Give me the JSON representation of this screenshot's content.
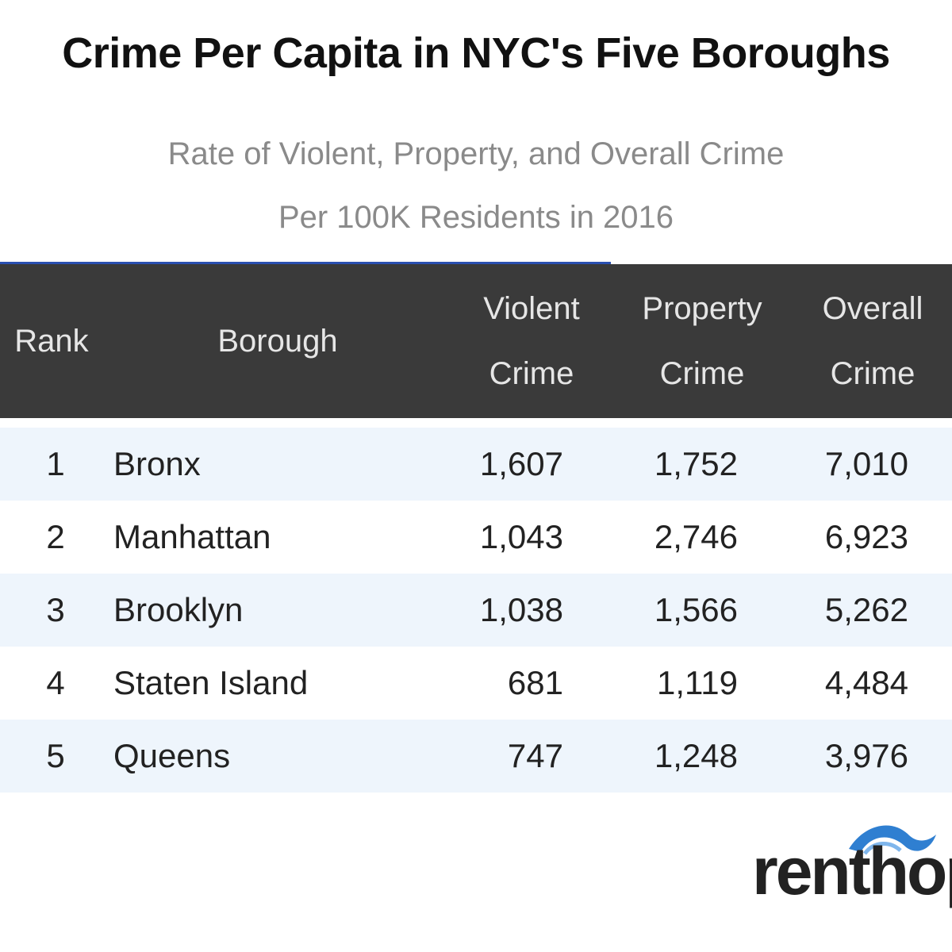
{
  "chart_data": {
    "type": "table",
    "title": "Crime Per Capita in NYC's Five Boroughs",
    "subtitle_lines": [
      "Rate of Violent, Property, and Overall Crime",
      "Per 100K Residents in 2016"
    ],
    "columns": [
      "Rank",
      "Borough",
      "Violent Crime",
      "Property Crime",
      "Overall Crime"
    ],
    "header_lines": {
      "violent": [
        "Violent",
        "Crime"
      ],
      "overall": [
        "Overall",
        "Crime"
      ]
    },
    "rows": [
      {
        "rank": "1",
        "borough": "Bronx",
        "violent": "1,607",
        "property": "1,752",
        "overall": "7,010"
      },
      {
        "rank": "2",
        "borough": "Manhattan",
        "violent": "1,043",
        "property": "2,746",
        "overall": "6,923"
      },
      {
        "rank": "3",
        "borough": "Brooklyn",
        "violent": "1,038",
        "property": "1,566",
        "overall": "5,262"
      },
      {
        "rank": "4",
        "borough": "Staten Island",
        "violent": "681",
        "property": "1,119",
        "overall": "4,484"
      },
      {
        "rank": "5",
        "borough": "Queens",
        "violent": "747",
        "property": "1,248",
        "overall": "3,976"
      }
    ]
  },
  "logo": {
    "text": "renthop",
    "icon": "wave-arc-icon",
    "color": "#2f7fd1"
  },
  "colors": {
    "header_bg": "#3a3a3a",
    "stripe": "#eef5fc",
    "accent": "#2a4fb0"
  }
}
